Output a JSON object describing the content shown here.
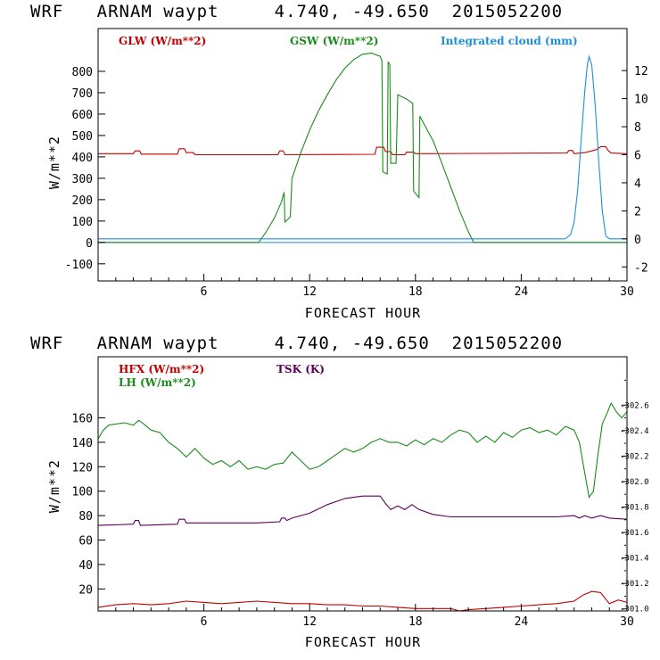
{
  "charts": [
    {
      "title": "WRF   ARNAM waypt     4.740, -49.650  2015052200",
      "xlabel": "FORECAST HOUR",
      "ylabel_left": "W/m**2",
      "legend": [
        {
          "label": "GLW (W/m**2)",
          "color": "#c00000"
        },
        {
          "label": "GSW (W/m**2)",
          "color": "#1a8c1a"
        },
        {
          "label": "Integrated cloud (mm)",
          "color": "#1e8fd8"
        }
      ]
    },
    {
      "title": "WRF   ARNAM waypt     4.740, -49.650  2015052200",
      "xlabel": "FORECAST HOUR",
      "ylabel_left": "W/m**2",
      "legend": [
        {
          "label": "HFX (W/m**2)",
          "color": "#c00000"
        },
        {
          "label": "LH  (W/m**2)",
          "color": "#1a8c1a"
        },
        {
          "label": "TSK (K)",
          "color": "#5a005a"
        }
      ]
    }
  ],
  "chart_data": [
    {
      "type": "line",
      "title": "WRF ARNAM waypt 4.740, -49.650 2015052200",
      "xlabel": "FORECAST HOUR",
      "ylabel": "W/m**2",
      "xlim": [
        0,
        30
      ],
      "ylim": [
        -180,
        1000
      ],
      "y2lim": [
        -3,
        15
      ],
      "x_ticks": [
        6,
        12,
        18,
        24,
        30
      ],
      "y_ticks": [
        -100,
        0,
        100,
        200,
        300,
        400,
        500,
        600,
        700,
        800
      ],
      "y2_ticks": [
        -2,
        0,
        2,
        4,
        6,
        8,
        10,
        12
      ],
      "series": [
        {
          "name": "GLW (W/m**2)",
          "axis": "left",
          "color": "#c00000",
          "points": [
            [
              0,
              415
            ],
            [
              2,
              415
            ],
            [
              2.1,
              428
            ],
            [
              2.35,
              428
            ],
            [
              2.45,
              413
            ],
            [
              4.5,
              413
            ],
            [
              4.6,
              438
            ],
            [
              4.9,
              438
            ],
            [
              5,
              420
            ],
            [
              5.4,
              420
            ],
            [
              5.5,
              410
            ],
            [
              10.2,
              410
            ],
            [
              10.3,
              428
            ],
            [
              10.5,
              428
            ],
            [
              10.6,
              410
            ],
            [
              15.7,
              412
            ],
            [
              15.8,
              445
            ],
            [
              16.2,
              445
            ],
            [
              16.3,
              425
            ],
            [
              16.6,
              425
            ],
            [
              16.7,
              410
            ],
            [
              17.4,
              410
            ],
            [
              17.5,
              422
            ],
            [
              17.9,
              422
            ],
            [
              18,
              415
            ],
            [
              26.6,
              418
            ],
            [
              26.7,
              430
            ],
            [
              26.9,
              430
            ],
            [
              27,
              415
            ],
            [
              27.6,
              420
            ],
            [
              28,
              428
            ],
            [
              28.3,
              435
            ],
            [
              28.5,
              448
            ],
            [
              28.8,
              448
            ],
            [
              28.9,
              432
            ],
            [
              29.1,
              418
            ],
            [
              30,
              415
            ]
          ]
        },
        {
          "name": "GSW (W/m**2)",
          "axis": "left",
          "color": "#1a8c1a",
          "points": [
            [
              0,
              0
            ],
            [
              9.1,
              0
            ],
            [
              9.5,
              45
            ],
            [
              10,
              115
            ],
            [
              10.4,
              190
            ],
            [
              10.55,
              235
            ],
            [
              10.6,
              95
            ],
            [
              10.9,
              120
            ],
            [
              11,
              300
            ],
            [
              11.5,
              420
            ],
            [
              12,
              525
            ],
            [
              12.5,
              615
            ],
            [
              13,
              690
            ],
            [
              13.5,
              760
            ],
            [
              14,
              815
            ],
            [
              14.5,
              855
            ],
            [
              15,
              880
            ],
            [
              15.5,
              885
            ],
            [
              16,
              870
            ],
            [
              16.1,
              850
            ],
            [
              16.15,
              330
            ],
            [
              16.4,
              320
            ],
            [
              16.45,
              845
            ],
            [
              16.55,
              830
            ],
            [
              16.6,
              370
            ],
            [
              16.9,
              370
            ],
            [
              17,
              690
            ],
            [
              17.5,
              670
            ],
            [
              17.85,
              650
            ],
            [
              17.9,
              240
            ],
            [
              18.2,
              210
            ],
            [
              18.25,
              590
            ],
            [
              19,
              475
            ],
            [
              19.5,
              370
            ],
            [
              20,
              260
            ],
            [
              20.5,
              150
            ],
            [
              21,
              50
            ],
            [
              21.3,
              0
            ],
            [
              30,
              0
            ]
          ]
        },
        {
          "name": "Integrated cloud (mm)",
          "axis": "right",
          "color": "#1e8fd8",
          "points": [
            [
              0,
              0
            ],
            [
              26.5,
              0
            ],
            [
              26.8,
              0.3
            ],
            [
              27,
              1.2
            ],
            [
              27.2,
              3.5
            ],
            [
              27.4,
              7
            ],
            [
              27.6,
              10.5
            ],
            [
              27.75,
              12.4
            ],
            [
              27.85,
              13
            ],
            [
              28,
              12.4
            ],
            [
              28.2,
              9.5
            ],
            [
              28.4,
              5.5
            ],
            [
              28.6,
              2
            ],
            [
              28.8,
              0.2
            ],
            [
              29,
              0
            ],
            [
              30,
              0
            ]
          ]
        }
      ]
    },
    {
      "type": "line",
      "title": "WRF ARNAM waypt 4.740, -49.650 2015052200",
      "xlabel": "FORECAST HOUR",
      "ylabel": "W/m**2",
      "xlim": [
        0,
        30
      ],
      "ylim": [
        2,
        210
      ],
      "y2lim": [
        300.984,
        302.98
      ],
      "x_ticks": [
        6,
        12,
        18,
        24,
        30
      ],
      "y_ticks": [
        20,
        40,
        60,
        80,
        100,
        120,
        140,
        160
      ],
      "y2_ticks": [
        301.0,
        301.2,
        301.4,
        301.6,
        301.8,
        302.0,
        302.2,
        302.4,
        302.6
      ],
      "y2_tick_labels": [
        "301.0",
        "301.2",
        "301.4",
        "301.6",
        "301.8",
        "302.0",
        "302.2",
        "302.4",
        "302.6"
      ],
      "series": [
        {
          "name": "HFX (W/m**2)",
          "axis": "left",
          "color": "#c00000",
          "points": [
            [
              0,
              5
            ],
            [
              1,
              7
            ],
            [
              2,
              8
            ],
            [
              3,
              7
            ],
            [
              4,
              8
            ],
            [
              5,
              10
            ],
            [
              6,
              9
            ],
            [
              7,
              8
            ],
            [
              8,
              9
            ],
            [
              9,
              10
            ],
            [
              10,
              9
            ],
            [
              11,
              8
            ],
            [
              12,
              8
            ],
            [
              13,
              7
            ],
            [
              14,
              7
            ],
            [
              15,
              6
            ],
            [
              16,
              6
            ],
            [
              17,
              5
            ],
            [
              18,
              4
            ],
            [
              19,
              4
            ],
            [
              20,
              4
            ],
            [
              20.5,
              2
            ],
            [
              21,
              3
            ],
            [
              22,
              4
            ],
            [
              23,
              5
            ],
            [
              24,
              6
            ],
            [
              25,
              7
            ],
            [
              26,
              8
            ],
            [
              27,
              10
            ],
            [
              27.5,
              15
            ],
            [
              28,
              18
            ],
            [
              28.5,
              17
            ],
            [
              29,
              8
            ],
            [
              29.5,
              11
            ],
            [
              30,
              9
            ]
          ]
        },
        {
          "name": "LH  (W/m**2)",
          "axis": "left",
          "color": "#1a8c1a",
          "points": [
            [
              0,
              143
            ],
            [
              0.3,
              150
            ],
            [
              0.6,
              154
            ],
            [
              1,
              155
            ],
            [
              1.5,
              156
            ],
            [
              2,
              154
            ],
            [
              2.3,
              158
            ],
            [
              2.6,
              155
            ],
            [
              3,
              150
            ],
            [
              3.5,
              148
            ],
            [
              4,
              140
            ],
            [
              4.5,
              135
            ],
            [
              5,
              128
            ],
            [
              5.5,
              135
            ],
            [
              6,
              127
            ],
            [
              6.5,
              122
            ],
            [
              7,
              125
            ],
            [
              7.5,
              120
            ],
            [
              8,
              125
            ],
            [
              8.5,
              118
            ],
            [
              9,
              120
            ],
            [
              9.5,
              118
            ],
            [
              10,
              122
            ],
            [
              10.5,
              123
            ],
            [
              11,
              132
            ],
            [
              11.5,
              125
            ],
            [
              12,
              118
            ],
            [
              12.5,
              120
            ],
            [
              13,
              125
            ],
            [
              13.5,
              130
            ],
            [
              14,
              135
            ],
            [
              14.5,
              132
            ],
            [
              15,
              135
            ],
            [
              15.5,
              140
            ],
            [
              16,
              143
            ],
            [
              16.5,
              140
            ],
            [
              17,
              140
            ],
            [
              17.5,
              137
            ],
            [
              18,
              142
            ],
            [
              18.5,
              138
            ],
            [
              19,
              143
            ],
            [
              19.5,
              140
            ],
            [
              20,
              146
            ],
            [
              20.5,
              150
            ],
            [
              21,
              148
            ],
            [
              21.5,
              140
            ],
            [
              22,
              145
            ],
            [
              22.5,
              140
            ],
            [
              23,
              148
            ],
            [
              23.5,
              144
            ],
            [
              24,
              150
            ],
            [
              24.5,
              152
            ],
            [
              25,
              148
            ],
            [
              25.5,
              150
            ],
            [
              26,
              146
            ],
            [
              26.5,
              153
            ],
            [
              27,
              150
            ],
            [
              27.3,
              140
            ],
            [
              27.6,
              115
            ],
            [
              27.85,
              95
            ],
            [
              28.1,
              100
            ],
            [
              28.35,
              130
            ],
            [
              28.6,
              155
            ],
            [
              28.9,
              165
            ],
            [
              29.1,
              172
            ],
            [
              29.4,
              165
            ],
            [
              29.7,
              160
            ],
            [
              30,
              165
            ]
          ]
        },
        {
          "name": "TSK (K)",
          "axis": "left",
          "color": "#5a005a",
          "points": [
            [
              0,
              72
            ],
            [
              2,
              73
            ],
            [
              2.1,
              76
            ],
            [
              2.3,
              76
            ],
            [
              2.4,
              72
            ],
            [
              4.5,
              73
            ],
            [
              4.6,
              77
            ],
            [
              4.9,
              77
            ],
            [
              5,
              74
            ],
            [
              9,
              74
            ],
            [
              10.3,
              75
            ],
            [
              10.4,
              78
            ],
            [
              10.6,
              78
            ],
            [
              10.7,
              76
            ],
            [
              11,
              78
            ],
            [
              12,
              82
            ],
            [
              13,
              89
            ],
            [
              14,
              94
            ],
            [
              15,
              96
            ],
            [
              16,
              96
            ],
            [
              16.3,
              90
            ],
            [
              16.6,
              85
            ],
            [
              17,
              88
            ],
            [
              17.4,
              85
            ],
            [
              17.8,
              89
            ],
            [
              18.2,
              85
            ],
            [
              19,
              81
            ],
            [
              20,
              79
            ],
            [
              23,
              79
            ],
            [
              26,
              79
            ],
            [
              27,
              80
            ],
            [
              27.3,
              78
            ],
            [
              27.6,
              80
            ],
            [
              28,
              78
            ],
            [
              28.5,
              80
            ],
            [
              29,
              78
            ],
            [
              30,
              77
            ]
          ]
        }
      ]
    }
  ]
}
